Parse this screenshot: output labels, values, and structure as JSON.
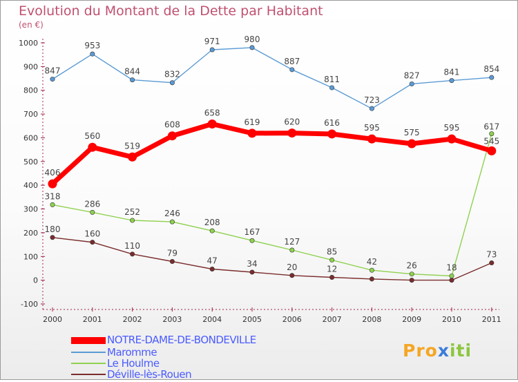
{
  "chart_data": {
    "type": "line",
    "title": "Evolution du Montant de la Dette par Habitant",
    "subtitle": "(en €)",
    "x": [
      "2000",
      "2001",
      "2002",
      "2003",
      "2004",
      "2005",
      "2006",
      "2007",
      "2008",
      "2009",
      "2010",
      "2011"
    ],
    "ylim": [
      -100,
      1000
    ],
    "yticks": [
      -100,
      0,
      100,
      200,
      300,
      400,
      500,
      600,
      700,
      800,
      900,
      1000
    ],
    "ytick_labels": [
      "-100",
      "0",
      "100",
      "200",
      "300",
      "400",
      "500",
      "600",
      "700",
      "800",
      "900",
      "1000"
    ],
    "grid": false,
    "legend": "bottom-left",
    "series": [
      {
        "name": "NOTRE-DAME-DE-BONDEVILLE",
        "color": "#ff0000",
        "values": [
          406,
          560,
          519,
          608,
          658,
          619,
          620,
          616,
          595,
          575,
          595,
          545
        ],
        "labels": [
          "406",
          "560",
          "519",
          "608",
          "658",
          "619",
          "620",
          "616",
          "595",
          "575",
          "595",
          "545"
        ]
      },
      {
        "name": "Maromme",
        "color": "#5b9bd5",
        "values": [
          847,
          953,
          844,
          832,
          971,
          980,
          887,
          811,
          723,
          827,
          841,
          854
        ],
        "labels": [
          "847",
          "953",
          "844",
          "832",
          "971",
          "980",
          "887",
          "811",
          "723",
          "827",
          "841",
          "854"
        ]
      },
      {
        "name": "Le Houlme",
        "color": "#8fd14f",
        "values": [
          318,
          286,
          252,
          246,
          208,
          167,
          127,
          85,
          42,
          26,
          18,
          617
        ],
        "labels": [
          "318",
          "286",
          "252",
          "246",
          "208",
          "167",
          "127",
          "85",
          "42",
          "26",
          "18",
          "617"
        ]
      },
      {
        "name": "Déville-lès-Rouen",
        "color": "#7b2c2c",
        "values": [
          180,
          160,
          110,
          79,
          47,
          34,
          20,
          12,
          5,
          0,
          0,
          73
        ],
        "labels": [
          "180",
          "160",
          "110",
          "79",
          "47",
          "34",
          "20",
          "12",
          "",
          "",
          "",
          "73"
        ]
      }
    ]
  },
  "legend_colors": {
    "NOTRE-DAME-DE-BONDEVILLE": "#ff0000",
    "Maromme": "#5b9bd5",
    "Le Houlme": "#8fd14f",
    "Déville-lès-Rouen": "#7b2c2c"
  },
  "logo": {
    "parts": [
      "Pro",
      "x",
      "iti"
    ]
  }
}
